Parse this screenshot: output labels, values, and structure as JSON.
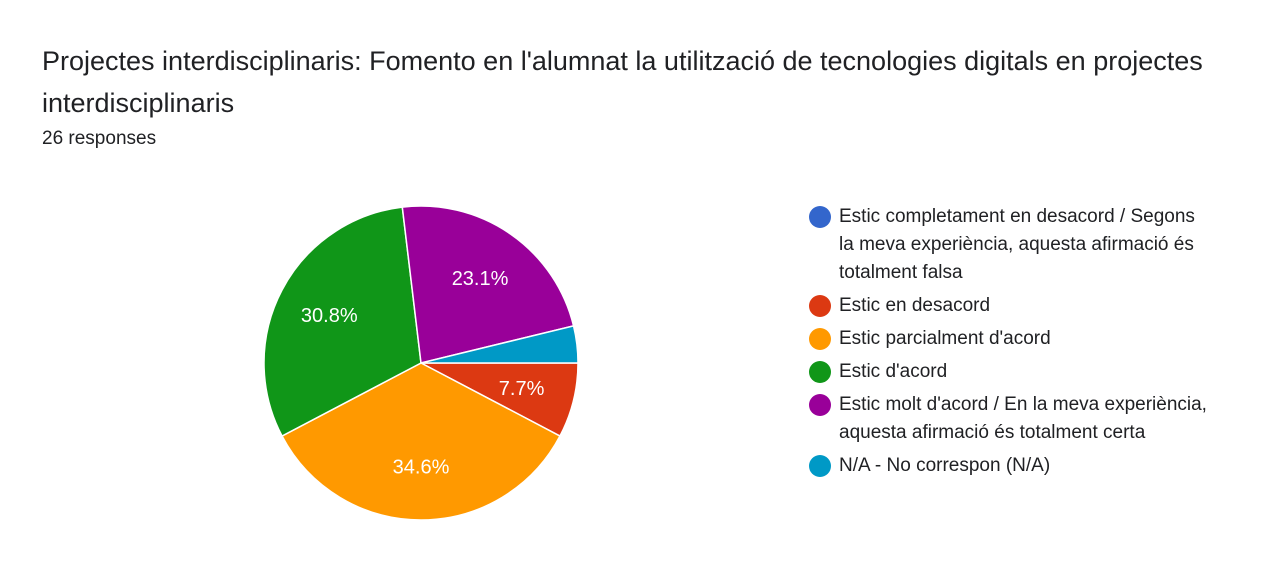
{
  "title": "Projectes interdisciplinaris: Fomento en l'alumnat la utilització de tecnologies digitals en projectes interdisciplinaris",
  "subtitle": "26 responses",
  "chart_data": {
    "type": "pie",
    "total_responses": 26,
    "slices": [
      {
        "label": "Estic completament en desacord / Segons la meva experiència, aquesta afirmació és totalment falsa",
        "value": 0.0,
        "display": "",
        "color": "#3366cc"
      },
      {
        "label": "Estic en desacord",
        "value": 7.7,
        "display": "7.7%",
        "color": "#dc3912"
      },
      {
        "label": "Estic parcialment d'acord",
        "value": 34.6,
        "display": "34.6%",
        "color": "#ff9900"
      },
      {
        "label": "Estic d'acord",
        "value": 30.8,
        "display": "30.8%",
        "color": "#109618"
      },
      {
        "label": "Estic molt d'acord / En la meva experiència, aquesta afirmació és totalment certa",
        "value": 23.1,
        "display": "23.1%",
        "color": "#990099"
      },
      {
        "label": "N/A - No correspon (N/A)",
        "value": 3.8,
        "display": "",
        "color": "#0099c6"
      }
    ],
    "legend_position": "right"
  }
}
